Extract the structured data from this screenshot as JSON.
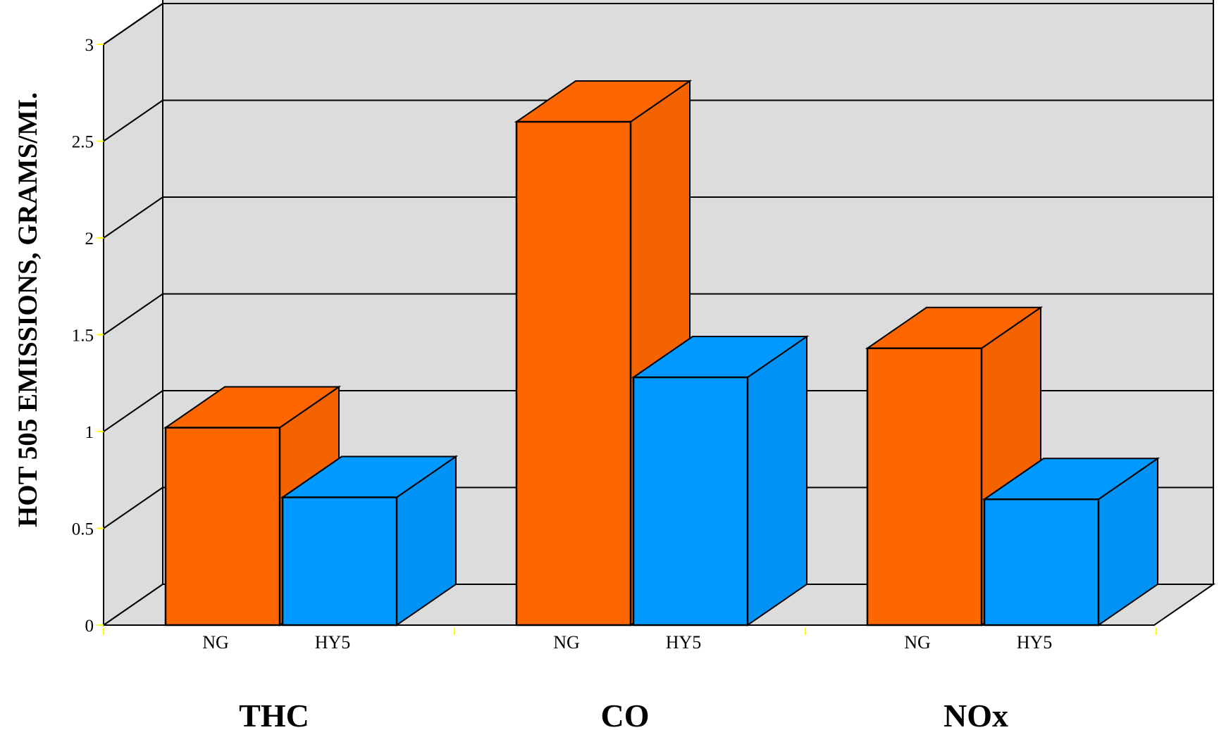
{
  "chart_data": {
    "type": "bar",
    "ylabel": "HOT 505 EMISSIONS, GRAMS/MI.",
    "ylim": [
      0,
      3
    ],
    "yticks": [
      "0",
      "0.5",
      "1",
      "1.5",
      "2",
      "2.5",
      "3"
    ],
    "grid": true,
    "groups": [
      {
        "label": "THC",
        "bars": [
          {
            "label": "NG",
            "value": 1.02,
            "color": "#ff6600"
          },
          {
            "label": "HY5",
            "value": 0.66,
            "color": "#0099ff"
          }
        ]
      },
      {
        "label": "CO",
        "bars": [
          {
            "label": "NG",
            "value": 2.6,
            "color": "#ff6600"
          },
          {
            "label": "HY5",
            "value": 1.28,
            "color": "#0099ff"
          }
        ]
      },
      {
        "label": "NOx",
        "bars": [
          {
            "label": "NG",
            "value": 1.43,
            "color": "#ff6600"
          },
          {
            "label": "HY5",
            "value": 0.65,
            "color": "#0099ff"
          }
        ]
      }
    ],
    "colors": {
      "wall": "#dcdcdc",
      "floor": "#dcdcdc",
      "tick_mark": "#ffff00"
    }
  }
}
